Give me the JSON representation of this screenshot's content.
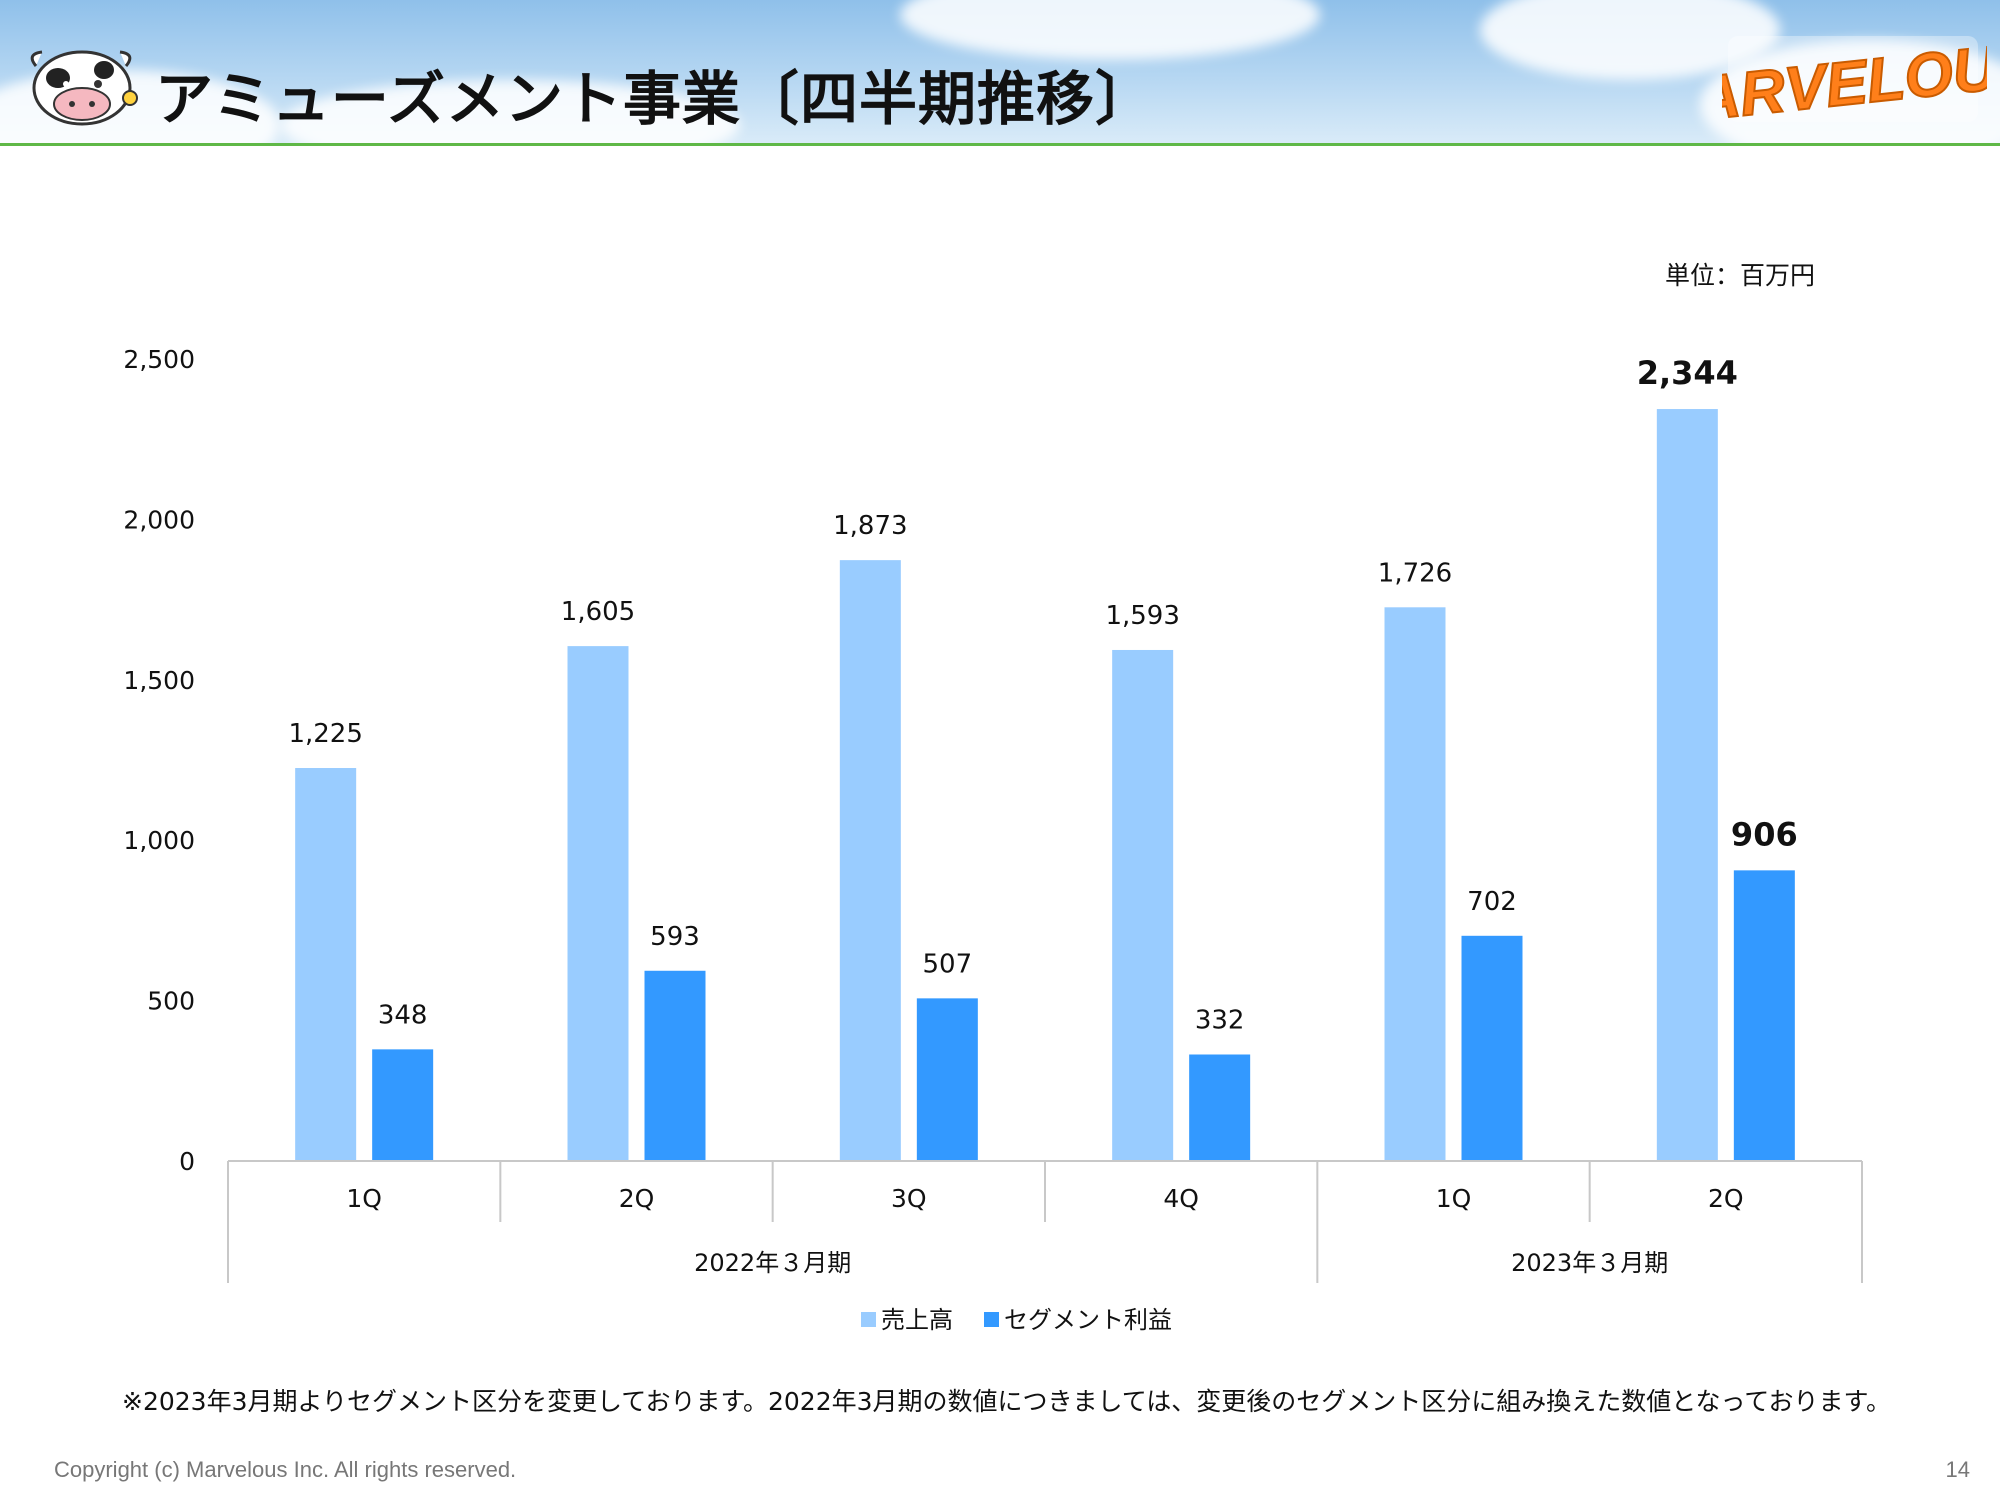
{
  "header": {
    "title": "アミューズメント事業〔四半期推移〕",
    "logo_text": "MARVELOUS!"
  },
  "unit_label": "単位：百万円",
  "footnote": "※2023年3月期よりセグメント区分を変更しております。2022年3月期の数値につきましては、変更後のセグメント区分に組み換えた数値となっております。",
  "footer": {
    "copyright": "Copyright (c) Marvelous Inc. All rights reserved.",
    "page_number": "14"
  },
  "colors": {
    "sales": "#99ccff",
    "segment_profit": "#3399ff",
    "header_line": "#5fb847",
    "logo": "#ff7f1a"
  },
  "chart_data": {
    "type": "bar",
    "categories": [
      "1Q",
      "2Q",
      "3Q",
      "4Q",
      "1Q",
      "2Q"
    ],
    "category_labels": [
      "1Q",
      "2Q",
      "3Q",
      "4Q",
      "1Q",
      "2Q"
    ],
    "groups": [
      {
        "label": "2022年３月期",
        "span": [
          0,
          3
        ]
      },
      {
        "label": "2023年３月期",
        "span": [
          4,
          5
        ]
      }
    ],
    "series": [
      {
        "name": "売上高",
        "values": [
          1225,
          1605,
          1873,
          1593,
          1726,
          2344
        ]
      },
      {
        "name": "セグメント利益",
        "values": [
          348,
          593,
          507,
          332,
          702,
          906
        ]
      }
    ],
    "value_labels": [
      [
        "1,225",
        "1,605",
        "1,873",
        "1,593",
        "1,726",
        "2,344"
      ],
      [
        "348",
        "593",
        "507",
        "332",
        "702",
        "906"
      ]
    ],
    "emphasized_index": 5,
    "ylim": [
      0,
      2500
    ],
    "yticks": [
      0,
      500,
      1000,
      1500,
      2000,
      2500
    ],
    "ytick_labels": [
      "0",
      "500",
      "1,000",
      "1,500",
      "2,000",
      "2,500"
    ],
    "grid": false,
    "legend_position": "bottom"
  }
}
